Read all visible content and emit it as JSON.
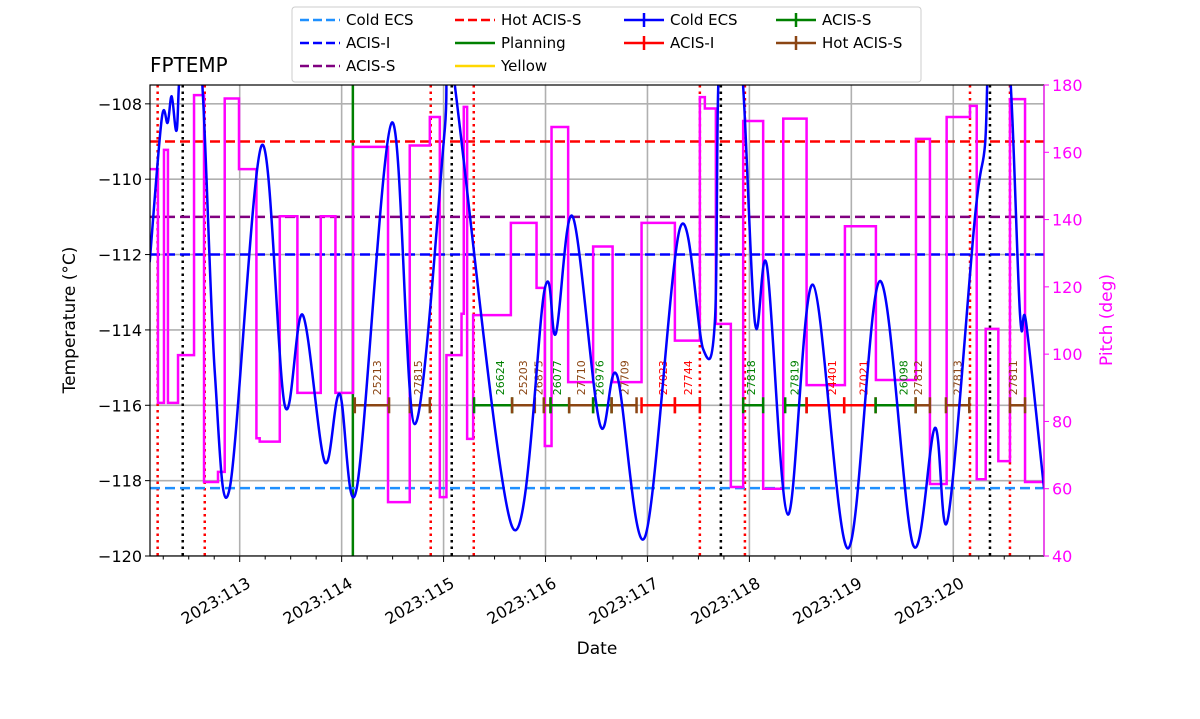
{
  "chart_data": {
    "type": "line",
    "title": "FPTEMP",
    "xlabel": "Date",
    "ylabel": "Temperature (°C)",
    "ylabel_right": "Pitch (deg)",
    "xlim": [
      112.12,
      120.89
    ],
    "ylim": [
      -120,
      -107.5
    ],
    "ylim_right": [
      40,
      180
    ],
    "grid": true,
    "legend_placement": "top-center",
    "x_ticks": [
      {
        "value": 113,
        "label": "2023:113"
      },
      {
        "value": 114,
        "label": "2023:114"
      },
      {
        "value": 115,
        "label": "2023:115"
      },
      {
        "value": 116,
        "label": "2023:116"
      },
      {
        "value": 117,
        "label": "2023:117"
      },
      {
        "value": 118,
        "label": "2023:118"
      },
      {
        "value": 119,
        "label": "2023:119"
      },
      {
        "value": 120,
        "label": "2023:120"
      }
    ],
    "y_ticks": [
      -120,
      -118,
      -116,
      -114,
      -112,
      -110,
      -108
    ],
    "y_ticks_right": [
      40,
      60,
      80,
      100,
      120,
      140,
      160,
      180
    ],
    "colors": {
      "temperature": "#0000ff",
      "pitch": "#ff00ff",
      "cold_ecs": "#1e90ff",
      "acis_i": "#0000ff",
      "acis_s": "#800080",
      "hot_acis_s": "#ff0000",
      "planning": "#008000",
      "yellow": "#ffd700",
      "obs_acis_i": "#ff0000",
      "obs_acis_s": "#008000",
      "obs_hot_acis_s": "#8b4513",
      "obs_cold_ecs": "#0000ff"
    },
    "temperature_series": [
      [
        112.117,
        -112.2
      ],
      [
        112.235,
        -108.4
      ],
      [
        112.293,
        -108.5
      ],
      [
        112.333,
        -107.8
      ],
      [
        112.382,
        -108.7
      ],
      [
        112.43,
        -106.8
      ],
      [
        112.607,
        -106.5
      ],
      [
        112.755,
        -115.1
      ],
      [
        112.902,
        -118.2
      ],
      [
        113.216,
        -109.1
      ],
      [
        113.442,
        -116.0
      ],
      [
        113.618,
        -113.6
      ],
      [
        113.834,
        -117.5
      ],
      [
        113.981,
        -115.7
      ],
      [
        114.148,
        -118.2
      ],
      [
        114.492,
        -108.5
      ],
      [
        114.717,
        -116.5
      ],
      [
        115.011,
        -108.7
      ],
      [
        115.06,
        -106.5
      ],
      [
        115.669,
        -119.2
      ],
      [
        115.993,
        -112.9
      ],
      [
        116.101,
        -114.1
      ],
      [
        116.268,
        -111.0
      ],
      [
        116.533,
        -116.5
      ],
      [
        116.7,
        -115.2
      ],
      [
        116.975,
        -119.5
      ],
      [
        117.319,
        -111.3
      ],
      [
        117.545,
        -114.5
      ],
      [
        117.663,
        -113.7
      ],
      [
        117.712,
        -106.5
      ],
      [
        117.908,
        -106.5
      ],
      [
        118.054,
        -113.8
      ],
      [
        118.172,
        -112.3
      ],
      [
        118.378,
        -118.9
      ],
      [
        118.623,
        -112.8
      ],
      [
        118.967,
        -119.8
      ],
      [
        119.281,
        -112.7
      ],
      [
        119.605,
        -119.7
      ],
      [
        119.82,
        -116.6
      ],
      [
        119.948,
        -119.0
      ],
      [
        120.213,
        -111.0
      ],
      [
        120.311,
        -109.1
      ],
      [
        120.36,
        -106.5
      ],
      [
        120.537,
        -106.5
      ],
      [
        120.655,
        -113.6
      ],
      [
        120.714,
        -113.8
      ],
      [
        120.89,
        -118.2
      ]
    ],
    "pitch_series": [
      [
        112.12,
        155
      ],
      [
        112.198,
        85.5
      ],
      [
        112.257,
        160.7
      ],
      [
        112.296,
        85.5
      ],
      [
        112.395,
        99.7
      ],
      [
        112.552,
        177
      ],
      [
        112.65,
        62
      ],
      [
        112.787,
        65
      ],
      [
        112.853,
        176
      ],
      [
        112.993,
        155
      ],
      [
        113.164,
        75
      ],
      [
        113.196,
        74
      ],
      [
        113.393,
        141
      ],
      [
        113.566,
        88.5
      ],
      [
        113.795,
        141
      ],
      [
        113.939,
        88.5
      ],
      [
        114.112,
        161.6
      ],
      [
        114.455,
        56
      ],
      [
        114.668,
        162
      ],
      [
        114.865,
        170.5
      ],
      [
        114.963,
        57.5
      ],
      [
        115.028,
        99.7
      ],
      [
        115.176,
        112
      ],
      [
        115.198,
        173.5
      ],
      [
        115.231,
        74.8
      ],
      [
        115.29,
        111.6
      ],
      [
        115.66,
        139
      ],
      [
        115.912,
        119.7
      ],
      [
        115.993,
        72.7
      ],
      [
        116.059,
        167.5
      ],
      [
        116.222,
        91.7
      ],
      [
        116.467,
        132
      ],
      [
        116.658,
        91.7
      ],
      [
        116.942,
        139
      ],
      [
        117.269,
        104
      ],
      [
        117.514,
        176.4
      ],
      [
        117.563,
        173
      ],
      [
        117.671,
        109
      ],
      [
        117.818,
        60.5
      ],
      [
        117.939,
        169.3
      ],
      [
        118.135,
        60
      ],
      [
        118.332,
        170
      ],
      [
        118.561,
        90.8
      ],
      [
        118.937,
        138
      ],
      [
        119.241,
        92.3
      ],
      [
        119.634,
        164
      ],
      [
        119.771,
        61.4
      ],
      [
        119.935,
        170.5
      ],
      [
        120.164,
        173.8
      ],
      [
        120.23,
        62.8
      ],
      [
        120.318,
        107.5
      ],
      [
        120.442,
        68.2
      ],
      [
        120.556,
        175.8
      ],
      [
        120.704,
        62
      ],
      [
        120.89,
        62
      ]
    ],
    "limits": [
      {
        "name": "Cold ECS",
        "value": -118.2,
        "color": "#1e90ff"
      },
      {
        "name": "ACIS-I",
        "value": -112,
        "color": "#0000ff"
      },
      {
        "name": "ACIS-S",
        "value": -111,
        "color": "#800080"
      },
      {
        "name": "Hot ACIS-S",
        "value": -109,
        "color": "#ff0000"
      }
    ],
    "planning_lines": [
      114.11
    ],
    "red_dotted_lines": [
      112.195,
      112.657,
      114.874,
      115.296,
      117.514,
      117.956,
      120.164,
      120.556
    ],
    "black_dotted_lines": [
      112.441,
      115.08,
      117.72,
      120.36
    ],
    "obsid_level": -116,
    "obsids": [
      {
        "obsid": "25213",
        "start": 114.129,
        "stop": 114.465,
        "mode": "Hot ACIS-S"
      },
      {
        "obsid": "27815",
        "start": 114.668,
        "stop": 114.865,
        "mode": "Hot ACIS-S"
      },
      {
        "obsid": "26624",
        "start": 115.299,
        "stop": 115.672,
        "mode": "ACIS-S"
      },
      {
        "obsid": "25203",
        "start": 115.672,
        "stop": 115.895,
        "mode": "Hot ACIS-S"
      },
      {
        "obsid": "26875",
        "start": 115.983,
        "stop": 116.049,
        "mode": "Hot ACIS-S"
      },
      {
        "obsid": "26077",
        "start": 116.049,
        "stop": 116.232,
        "mode": "ACIS-S"
      },
      {
        "obsid": "27710",
        "start": 116.232,
        "stop": 116.467,
        "mode": "Hot ACIS-S"
      },
      {
        "obsid": "26976",
        "start": 116.467,
        "stop": 116.648,
        "mode": "ACIS-S"
      },
      {
        "obsid": "27709",
        "start": 116.648,
        "stop": 116.893,
        "mode": "Hot ACIS-S"
      },
      {
        "obsid": "27023",
        "start": 116.942,
        "stop": 117.269,
        "mode": "ACIS-I"
      },
      {
        "obsid": "27744",
        "start": 117.269,
        "stop": 117.514,
        "mode": "ACIS-I"
      },
      {
        "obsid": "27818",
        "start": 117.939,
        "stop": 118.135,
        "mode": "ACIS-S"
      },
      {
        "obsid": "27819",
        "start": 118.351,
        "stop": 118.561,
        "mode": "ACIS-S"
      },
      {
        "obsid": "24401",
        "start": 118.561,
        "stop": 118.93,
        "mode": "ACIS-I"
      },
      {
        "obsid": "27021",
        "start": 118.93,
        "stop": 119.238,
        "mode": "ACIS-I"
      },
      {
        "obsid": "26098",
        "start": 119.238,
        "stop": 119.631,
        "mode": "ACIS-S"
      },
      {
        "obsid": "27812",
        "start": 119.631,
        "stop": 119.771,
        "mode": "Hot ACIS-S"
      },
      {
        "obsid": "27813",
        "start": 119.928,
        "stop": 120.157,
        "mode": "Hot ACIS-S"
      },
      {
        "obsid": "27811",
        "start": 120.556,
        "stop": 120.704,
        "mode": "Hot ACIS-S"
      }
    ],
    "legend": [
      {
        "label": "Cold ECS",
        "style": "dashed",
        "color": "#1e90ff"
      },
      {
        "label": "ACIS-I",
        "style": "dashed",
        "color": "#0000ff"
      },
      {
        "label": "ACIS-S",
        "style": "dashed",
        "color": "#800080"
      },
      {
        "label": "Hot ACIS-S",
        "style": "dashed",
        "color": "#ff0000"
      },
      {
        "label": "Planning",
        "style": "solid",
        "color": "#008000"
      },
      {
        "label": "Yellow",
        "style": "solid",
        "color": "#ffd700"
      },
      {
        "label": "Cold ECS",
        "style": "errorbar",
        "color": "#0000ff"
      },
      {
        "label": "ACIS-I",
        "style": "errorbar",
        "color": "#ff0000"
      },
      {
        "label": "ACIS-S",
        "style": "errorbar",
        "color": "#008000"
      },
      {
        "label": "Hot ACIS-S",
        "style": "errorbar",
        "color": "#8b4513"
      }
    ]
  }
}
